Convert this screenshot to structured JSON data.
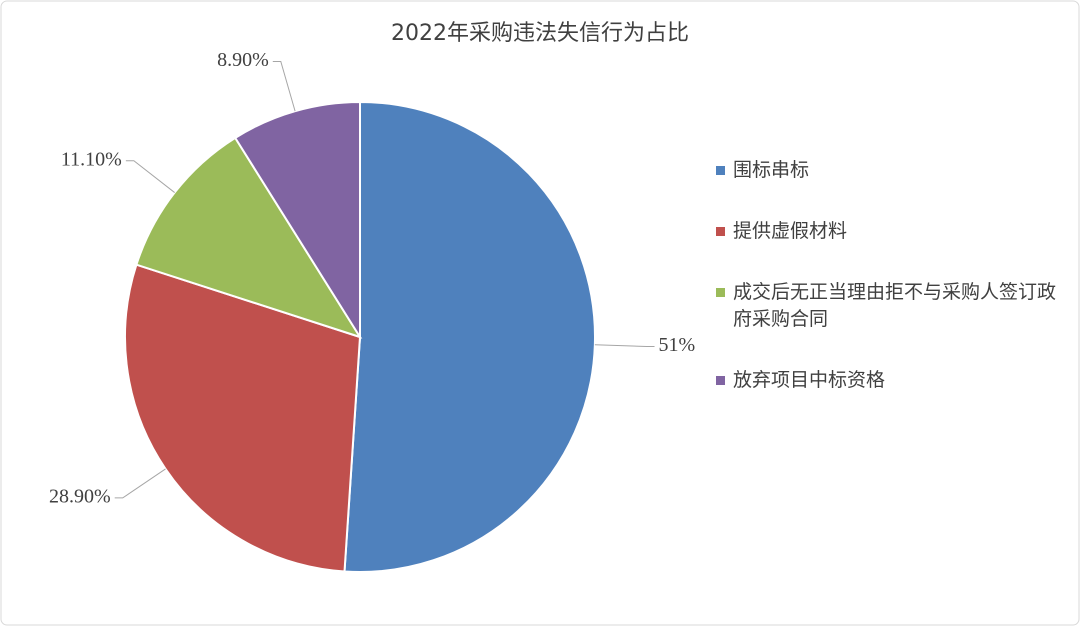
{
  "chart_data": {
    "type": "pie",
    "title": "2022年采购违法失信行为占比",
    "categories": [
      "围标串标",
      "提供虚假材料",
      "成交后无正当理由拒不与采购人签订政府采购合同",
      "放弃项目中标资格"
    ],
    "values": [
      51,
      28.9,
      11.1,
      8.9
    ],
    "value_labels": [
      "51%",
      "28.90%",
      "11.10%",
      "8.90%"
    ],
    "colors": [
      "#4f81bd",
      "#c0504d",
      "#9bbb59",
      "#8064a2"
    ],
    "legend": "right"
  }
}
